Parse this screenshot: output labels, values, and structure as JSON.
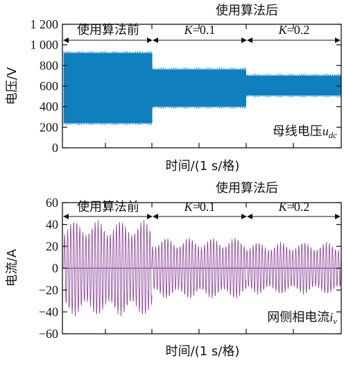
{
  "chart_data": [
    {
      "type": "line",
      "ylabel": "电压/V",
      "xlabel": "时间/(1 s/格)",
      "ylim": [
        0,
        1200
      ],
      "yticks": [
        0,
        200,
        400,
        600,
        800,
        1000,
        1200
      ],
      "ytick_labels": [
        "0",
        "200",
        "400",
        "600",
        "800",
        "1 000",
        "1 200"
      ],
      "grid": false,
      "color": "#0f7fbf",
      "signal_label": {
        "prefix": "母线电压",
        "symbol": "u",
        "subscript": "dc"
      },
      "segments": [
        {
          "label": "使用算法前",
          "upper": 920,
          "lower": 240
        },
        {
          "label": "K=0.1",
          "upper": 760,
          "lower": 400
        },
        {
          "label": "K=0.2",
          "upper": 700,
          "lower": 510
        }
      ],
      "annotations": {
        "before": "使用算法前",
        "after": "使用算法后",
        "k1": {
          "var": "K",
          "rest": "=0.1"
        },
        "k2": {
          "var": "K",
          "rest": "=0.2"
        }
      }
    },
    {
      "type": "line",
      "ylabel": "电流/A",
      "xlabel": "时间/(1 s/格)",
      "ylim": [
        -60,
        60
      ],
      "yticks": [
        -60,
        -40,
        -20,
        0,
        20,
        40,
        60
      ],
      "ytick_labels": [
        "−60",
        "−40",
        "−20",
        "0",
        "20",
        "40",
        "60"
      ],
      "grid": false,
      "color": "#8e4a9a",
      "signal_label": {
        "prefix": "网侧相电流",
        "symbol": "i",
        "subscript": "v"
      },
      "segments": [
        {
          "label": "使用算法前",
          "amplitude": 44
        },
        {
          "label": "K=0.1",
          "amplitude": 28
        },
        {
          "label": "K=0.2",
          "amplitude": 24
        }
      ],
      "annotations": {
        "before": "使用算法前",
        "after": "使用算法后",
        "k1": {
          "var": "K",
          "rest": "=0.1"
        },
        "k2": {
          "var": "K",
          "rest": "=0.2"
        }
      }
    }
  ]
}
